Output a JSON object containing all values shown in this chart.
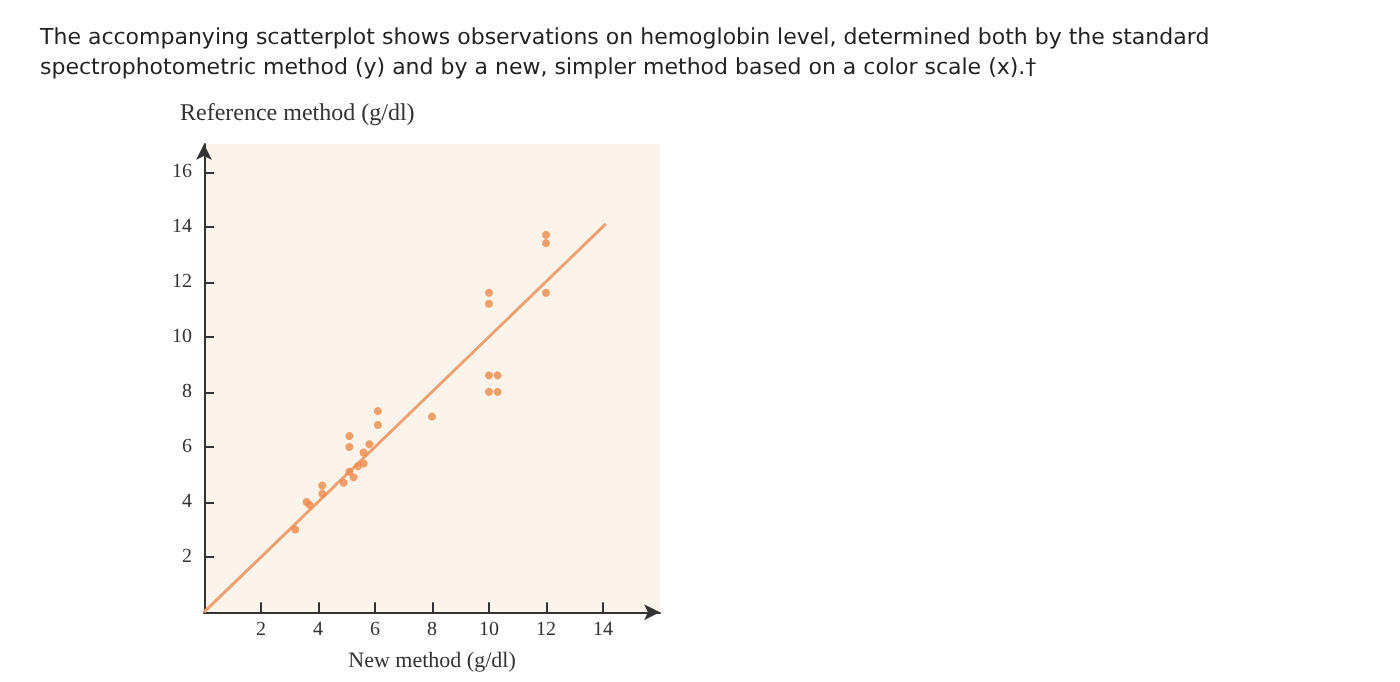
{
  "chart_data": {
    "type": "scatter",
    "title": "The accompanying scatterplot shows observations on hemoglobin level, determined both by the standard spectrophotometric method (y) and by a new, simpler method based on a color scale (x).†",
    "xlabel": "New method (g/dl)",
    "ylabel": "Reference method (g/dl)",
    "xlim": [
      0,
      16
    ],
    "ylim": [
      0,
      17
    ],
    "xticks": [
      2,
      4,
      6,
      8,
      10,
      12,
      14
    ],
    "yticks": [
      2,
      4,
      6,
      8,
      10,
      12,
      14,
      16
    ],
    "grid": false,
    "series": [
      {
        "color": "#f08848",
        "marker": "circle",
        "x": [
          3.2,
          3.6,
          3.7,
          4.15,
          4.15,
          4.9,
          5.1,
          5.1,
          5.1,
          5.25,
          5.4,
          5.6,
          5.6,
          5.8,
          6.1,
          6.1,
          8.0,
          10.0,
          10.0,
          10.0,
          10.3,
          10.0,
          10.3,
          12.0,
          12.0,
          12.0
        ],
        "values": [
          3.0,
          4.0,
          3.9,
          4.6,
          4.3,
          4.7,
          6.4,
          6.0,
          5.1,
          4.9,
          5.3,
          5.4,
          5.8,
          6.1,
          7.3,
          6.8,
          7.1,
          11.6,
          11.2,
          8.6,
          8.6,
          8.0,
          8.0,
          13.7,
          13.4,
          11.6
        ]
      },
      {
        "type": "line",
        "color": "#f0a070",
        "marker": "none",
        "line_style": "solid",
        "x": [
          0,
          14.1
        ],
        "values": [
          0,
          14.1
        ]
      }
    ]
  }
}
